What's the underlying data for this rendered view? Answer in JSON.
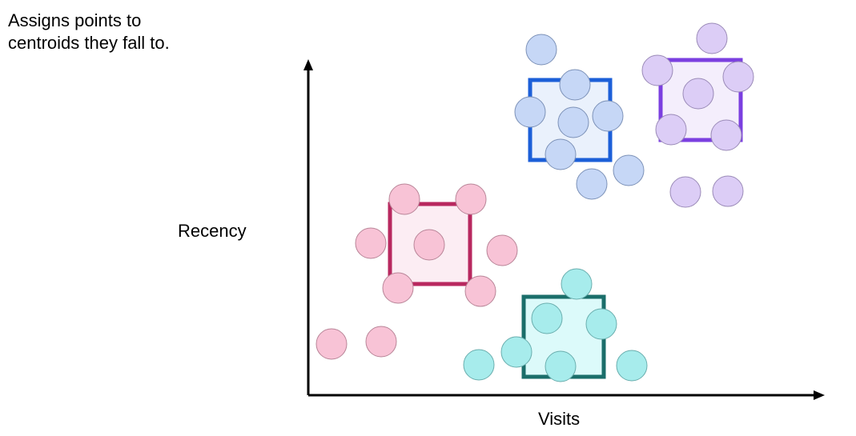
{
  "caption": "Assigns points to\ncentroids they fall to.",
  "xlabel": "Visits",
  "ylabel": "Recency",
  "clusters": [
    {
      "name": "blue",
      "box_fill": "#eaf1fc",
      "box_stroke": "#1c5fd8",
      "point_fill": "#c6d7f6",
      "point_stroke": "#7d92b8"
    },
    {
      "name": "purple",
      "box_fill": "#f4eefc",
      "box_stroke": "#7b3fe0",
      "point_fill": "#dccdf6",
      "point_stroke": "#9b8bb8"
    },
    {
      "name": "pink",
      "box_fill": "#fcedf3",
      "box_stroke": "#b8285f",
      "point_fill": "#f8c3d6",
      "point_stroke": "#b98598"
    },
    {
      "name": "teal",
      "box_fill": "#dcfafa",
      "box_stroke": "#1a6e6a",
      "point_fill": "#a7ecec",
      "point_stroke": "#6aaeae"
    }
  ]
}
